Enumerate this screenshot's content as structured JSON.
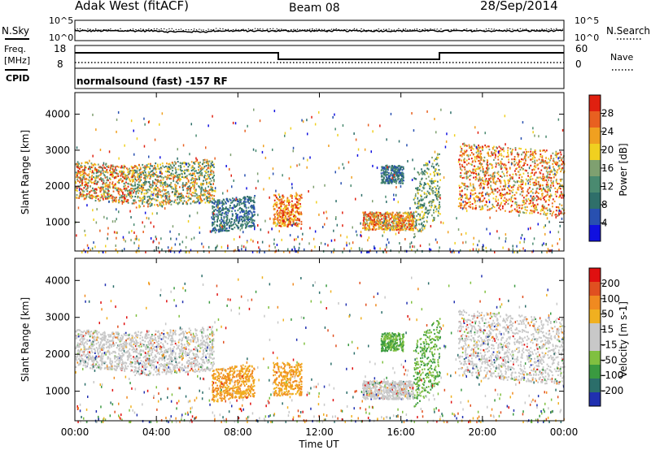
{
  "header": {
    "station": "Adak West (fitACF)",
    "beam": "Beam 08",
    "date": "28/Sep/2014"
  },
  "noise_panel": {
    "left_label": "N.Sky",
    "right_label": "N.Search",
    "ticks": [
      "10^5",
      "10^0"
    ],
    "right_ticks": [
      "10^5",
      "10^0"
    ]
  },
  "freq_panel": {
    "left_label_1": "Freq.",
    "left_label_2": "[MHz]",
    "left_label_3": "CPID",
    "left_ticks": [
      "18",
      "8"
    ],
    "right_label": "Nave",
    "right_ticks": [
      "60",
      "0"
    ],
    "cpid_text": "normalsound (fast) -157 RF"
  },
  "colors": {
    "power_scale": [
      "#1010e0",
      "#2850b0",
      "#2f6f6a",
      "#4a8a70",
      "#7fa070",
      "#f0d020",
      "#f0a020",
      "#e86020",
      "#e02010"
    ],
    "velocity_scale": [
      "#e01010",
      "#e05020",
      "#f08a20",
      "#f0b020",
      "#c8c8c8",
      "#c8c8c8",
      "#80c040",
      "#3a9a40",
      "#2b6e6a",
      "#2030b0"
    ]
  },
  "chart_data": [
    {
      "type": "heatmap",
      "title": "",
      "ylabel": "Slant Range [km]",
      "yticks": [
        "1000",
        "2000",
        "3000",
        "4000"
      ],
      "ylim": [
        200,
        4600
      ],
      "colorbar_label": "Power [dB]",
      "colorbar_ticks": [
        "4",
        "8",
        "12",
        "16",
        "20",
        "24",
        "28"
      ],
      "clim": [
        0,
        30
      ]
    },
    {
      "type": "heatmap",
      "title": "",
      "ylabel": "Slant Range [km]",
      "yticks": [
        "1000",
        "2000",
        "3000",
        "4000"
      ],
      "ylim": [
        200,
        4600
      ],
      "xlabel": "Time UT",
      "xticks": [
        "00:00",
        "04:00",
        "08:00",
        "12:00",
        "16:00",
        "20:00",
        "00:00"
      ],
      "colorbar_label": "Velocity [m s-1]",
      "colorbar_ticks": [
        "200",
        "100",
        "50",
        "15",
        "-15",
        "-50",
        "-100",
        "-200"
      ],
      "clim": [
        -250,
        250
      ]
    }
  ]
}
